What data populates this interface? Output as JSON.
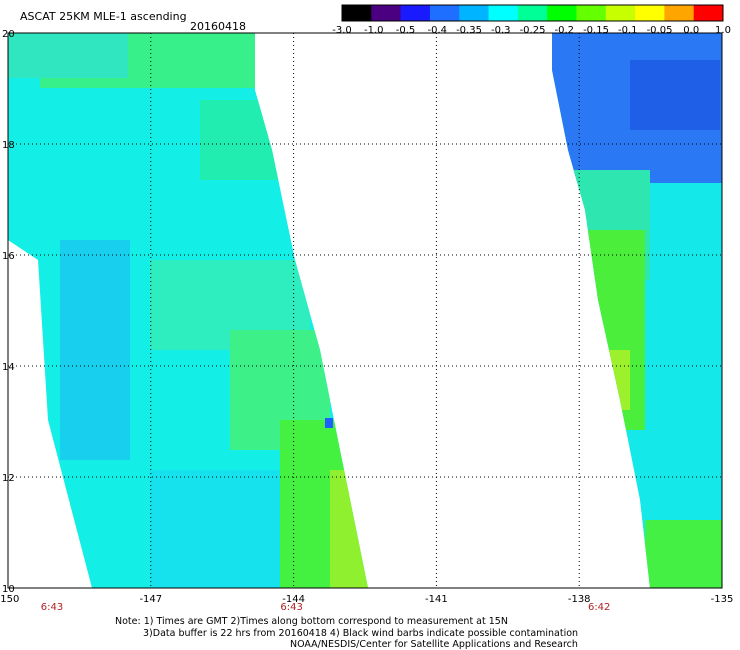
{
  "header": {
    "title": "ASCAT 25KM MLE-1 ascending",
    "date": "20160418"
  },
  "colorbar": {
    "labels": [
      "-3.0",
      "-1.0",
      "-0.5",
      "-0.4",
      "-0.35",
      "-0.3",
      "-0.25",
      "-0.2",
      "-0.15",
      "-0.1",
      "-0.05",
      "0.0",
      "1.0"
    ],
    "colors": [
      "#000000",
      "#4b0082",
      "#1a1aff",
      "#1e6eff",
      "#00b4ff",
      "#00ffff",
      "#00ff96",
      "#00ff00",
      "#64ff00",
      "#c8ff00",
      "#ffff00",
      "#ffa500",
      "#ff0000"
    ]
  },
  "axes": {
    "x_ticks": [
      "-150",
      "-147",
      "-144",
      "-141",
      "-138",
      "-135"
    ],
    "y_ticks": [
      "20",
      "18",
      "16",
      "14",
      "12",
      "10"
    ],
    "times": [
      "6:43",
      "6:43",
      "6:42"
    ]
  },
  "notes": {
    "line1": "Note: 1) Times are GMT 2)Times along bottom correspond to measurement at 15N",
    "line2": "3)Data buffer is 22 hrs from 20160418 4) Black wind barbs indicate possible contamination",
    "line3": "NOAA/NESDIS/Center for Satellite Applications and Research"
  }
}
